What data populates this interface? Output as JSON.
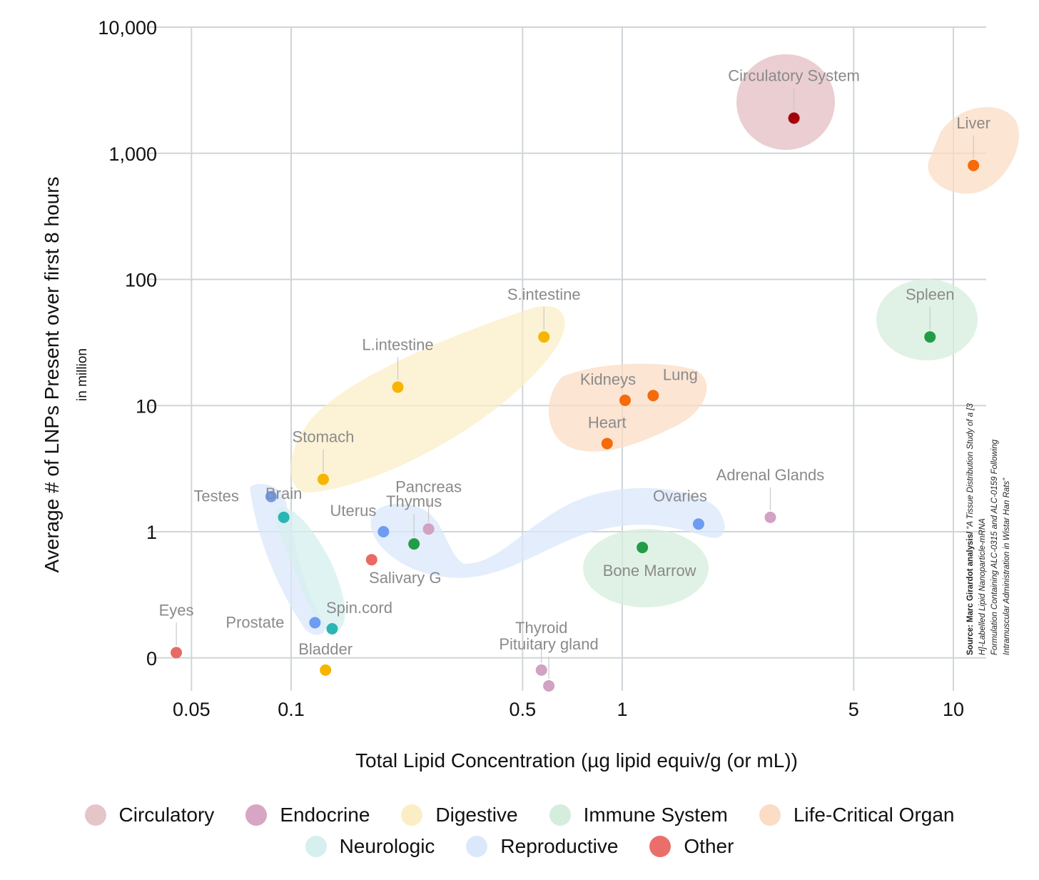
{
  "chart_data": {
    "type": "scatter",
    "title": "",
    "xlabel": "Total Lipid Concentration (µg lipid equiv/g (or mL))",
    "ylabel": "Average # of LNPs Present over first 8 hours",
    "ylabel_sub": "in million",
    "x_scale": "log",
    "y_scale": "log",
    "xlim": [
      0.04,
      12
    ],
    "ylim": [
      0.07,
      10000
    ],
    "x_ticks": [
      {
        "value": 0.05,
        "label": "0.05"
      },
      {
        "value": 0.1,
        "label": "0.1"
      },
      {
        "value": 0.5,
        "label": "0.5"
      },
      {
        "value": 1,
        "label": "1"
      },
      {
        "value": 5,
        "label": "5"
      },
      {
        "value": 10,
        "label": "10"
      }
    ],
    "y_ticks": [
      {
        "value": 0.1,
        "label": "0"
      },
      {
        "value": 1,
        "label": "1"
      },
      {
        "value": 10,
        "label": "10"
      },
      {
        "value": 100,
        "label": "100"
      },
      {
        "value": 1000,
        "label": "1,000"
      },
      {
        "value": 10000,
        "label": "10,000"
      }
    ],
    "grid": true,
    "legend_position": "bottom",
    "categories": [
      {
        "name": "Circulatory",
        "color": "#e6c5c9",
        "dot": "#a3000a"
      },
      {
        "name": "Endocrine",
        "color": "#d7a6c3",
        "dot": "#d1a2c2"
      },
      {
        "name": "Digestive",
        "color": "#fbeec7",
        "dot": "#f7b500"
      },
      {
        "name": "Immune System",
        "color": "#d5eddc",
        "dot": "#239c47"
      },
      {
        "name": "Life-Critical Organ",
        "color": "#fbdcc4",
        "dot": "#f56b0a"
      },
      {
        "name": "Neurologic",
        "color": "#d6efef",
        "dot": "#2ab5b5"
      },
      {
        "name": "Reproductive",
        "color": "#dbe7fb",
        "dot": "#6d9cf2"
      },
      {
        "name": "Other",
        "color": "#ea6f6a",
        "dot": "#e86a64"
      }
    ],
    "points": [
      {
        "label": "Circulatory System",
        "x": 3.3,
        "y": 1900,
        "category": "Circulatory"
      },
      {
        "label": "Liver",
        "x": 11.5,
        "y": 800,
        "category": "Life-Critical Organ"
      },
      {
        "label": "Spleen",
        "x": 8.5,
        "y": 35,
        "category": "Immune System"
      },
      {
        "label": "S.intestine",
        "x": 0.58,
        "y": 35,
        "category": "Digestive"
      },
      {
        "label": "L.intestine",
        "x": 0.21,
        "y": 14,
        "category": "Digestive"
      },
      {
        "label": "Kidneys",
        "x": 1.02,
        "y": 11,
        "category": "Life-Critical Organ"
      },
      {
        "label": "Lung",
        "x": 1.24,
        "y": 12,
        "category": "Life-Critical Organ"
      },
      {
        "label": "Heart",
        "x": 0.9,
        "y": 5,
        "category": "Life-Critical Organ"
      },
      {
        "label": "Stomach",
        "x": 0.125,
        "y": 2.6,
        "category": "Digestive"
      },
      {
        "label": "Brain",
        "x": 0.095,
        "y": 1.3,
        "category": "Neurologic"
      },
      {
        "label": "Testes",
        "x": 0.087,
        "y": 1.9,
        "category": "Reproductive"
      },
      {
        "label": "Pancreas",
        "x": 0.26,
        "y": 1.05,
        "category": "Endocrine"
      },
      {
        "label": "Thymus",
        "x": 0.235,
        "y": 0.8,
        "category": "Immune System"
      },
      {
        "label": "Uterus",
        "x": 0.19,
        "y": 1.0,
        "category": "Reproductive"
      },
      {
        "label": "Salivary G",
        "x": 0.175,
        "y": 0.6,
        "category": "Other"
      },
      {
        "label": "Ovaries",
        "x": 1.7,
        "y": 1.15,
        "category": "Reproductive"
      },
      {
        "label": "Adrenal Glands",
        "x": 2.8,
        "y": 1.3,
        "category": "Endocrine"
      },
      {
        "label": "Bone Marrow",
        "x": 1.15,
        "y": 0.75,
        "category": "Immune System"
      },
      {
        "label": "Eyes",
        "x": 0.045,
        "y": 0.11,
        "category": "Other"
      },
      {
        "label": "Prostate",
        "x": 0.118,
        "y": 0.19,
        "category": "Reproductive"
      },
      {
        "label": "Spin.cord",
        "x": 0.133,
        "y": 0.17,
        "category": "Neurologic"
      },
      {
        "label": "Bladder",
        "x": 0.127,
        "y": 0.08,
        "category": "Digestive"
      },
      {
        "label": "Thyroid",
        "x": 0.57,
        "y": 0.08,
        "category": "Endocrine"
      },
      {
        "label": "Pituitary gland",
        "x": 0.6,
        "y": 0.06,
        "category": "Endocrine"
      }
    ],
    "source_bold": "Source: Marc Girardot analysis/",
    "source_lines": [
      "“A Tissue Distribution Study of a [3",
      "H]-Labelled Lipid Nanoparticle-mRNA",
      "Formulation Containing ALC-0315 and ALC-0159 Following",
      "Intramuscular Administration in Wistar Han Rats”"
    ]
  }
}
